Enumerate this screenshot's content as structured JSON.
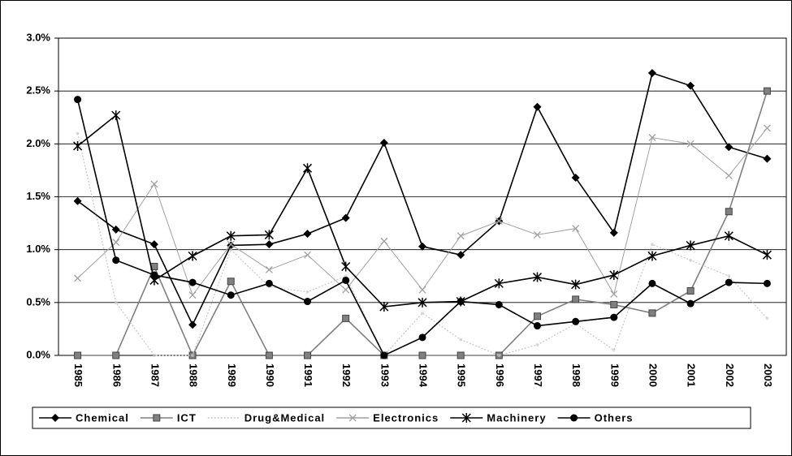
{
  "chart_data": {
    "type": "line",
    "categories": [
      "1985",
      "1986",
      "1987",
      "1988",
      "1989",
      "1990",
      "1991",
      "1992",
      "1993",
      "1994",
      "1995",
      "1996",
      "1997",
      "1998",
      "1999",
      "2000",
      "2001",
      "2002",
      "2003"
    ],
    "ylim": [
      0,
      3
    ],
    "yticks": [
      {
        "value": 0,
        "label": "0.0%"
      },
      {
        "value": 0.5,
        "label": "0.5%"
      },
      {
        "value": 1,
        "label": "1.0%"
      },
      {
        "value": 1.5,
        "label": "1.5%"
      },
      {
        "value": 2,
        "label": "2.0%"
      },
      {
        "value": 2.5,
        "label": "2.5%"
      },
      {
        "value": 3,
        "label": "3.0%"
      }
    ],
    "grid": true,
    "legend": "bottom",
    "series": [
      {
        "name": "Chemical",
        "color": "#000000",
        "marker": "diamond",
        "dotted": false,
        "values": [
          1.46,
          1.19,
          1.05,
          0.29,
          1.04,
          1.05,
          1.15,
          1.3,
          2.01,
          1.03,
          0.95,
          1.27,
          2.35,
          1.68,
          1.16,
          2.67,
          2.55,
          1.97,
          1.86
        ]
      },
      {
        "name": "ICT",
        "color": "#808080",
        "marker": "square",
        "dotted": false,
        "values": [
          0,
          0,
          0.84,
          0,
          0.7,
          0,
          0,
          0.35,
          0,
          0,
          0,
          0,
          0.37,
          0.53,
          0.48,
          0.4,
          0.61,
          1.36,
          2.5
        ]
      },
      {
        "name": "Drug&Medical",
        "color": "#c8c8c8",
        "marker": "none",
        "dotted": true,
        "values": [
          2.1,
          0.5,
          0,
          0,
          1.0,
          0.65,
          0.6,
          0.75,
          0,
          0.4,
          0.15,
          0,
          0.1,
          0.3,
          0.05,
          1.05,
          0.9,
          0.75,
          0.35
        ]
      },
      {
        "name": "Electronics",
        "color": "#a0a0a0",
        "marker": "x",
        "dotted": false,
        "values": [
          0.73,
          1.07,
          1.62,
          0.57,
          1.05,
          0.81,
          0.95,
          0.62,
          1.08,
          0.62,
          1.13,
          1.27,
          1.14,
          1.2,
          0.58,
          2.06,
          2.0,
          1.7,
          2.15
        ]
      },
      {
        "name": "Machinery",
        "color": "#000000",
        "marker": "star",
        "dotted": false,
        "values": [
          1.98,
          2.27,
          0.71,
          0.94,
          1.13,
          1.14,
          1.77,
          0.84,
          0.46,
          0.5,
          0.51,
          0.68,
          0.74,
          0.67,
          0.76,
          0.94,
          1.04,
          1.13,
          0.95
        ]
      },
      {
        "name": "Others",
        "color": "#000000",
        "marker": "circle",
        "dotted": false,
        "values": [
          2.42,
          0.9,
          0.76,
          0.69,
          0.57,
          0.68,
          0.51,
          0.71,
          0,
          0.17,
          0.51,
          0.48,
          0.28,
          0.32,
          0.36,
          0.68,
          0.49,
          0.69,
          0.68
        ]
      }
    ]
  }
}
